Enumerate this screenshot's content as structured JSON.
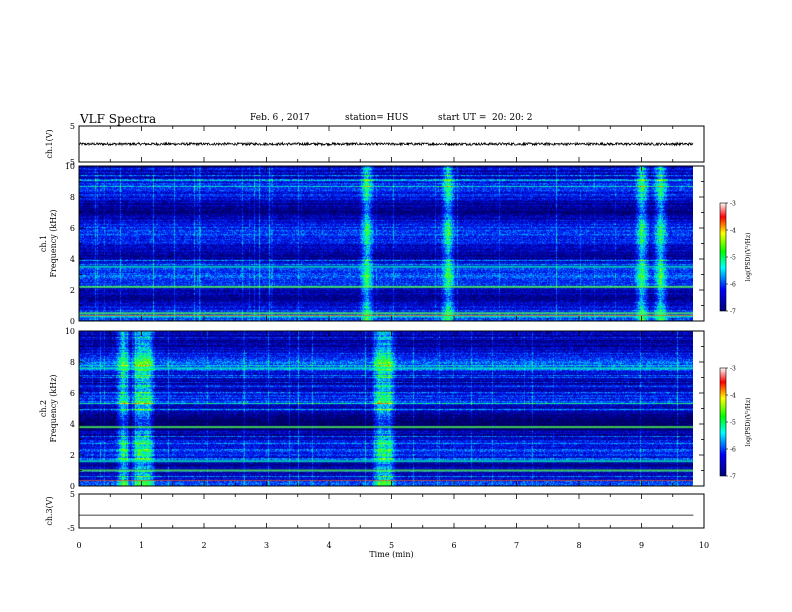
{
  "header": {
    "title": "VLF Spectra",
    "date": "Feb. 6 , 2017",
    "station": "station= HUS",
    "start_label": "start  UT =",
    "start_time": "20: 20: 2"
  },
  "chart_data": {
    "type": "heatmap",
    "xlabel": "Time (min)",
    "xlim": [
      0,
      10
    ],
    "x_ticks": [
      "0",
      "1",
      "2",
      "3",
      "4",
      "5",
      "6",
      "7",
      "8",
      "9",
      "10"
    ],
    "data_end_min": 9.83,
    "panels": [
      {
        "kind": "waveform",
        "ylabel": "ch.1(V)",
        "ylim": [
          -5,
          5
        ],
        "y_ticks": [
          "5",
          "-5"
        ],
        "level": 0.0,
        "noise": 0.35
      },
      {
        "kind": "spectrogram",
        "ylabel": "ch.1\nFrequency (kHz)",
        "ylim": [
          0,
          10
        ],
        "y_ticks": [
          "0",
          "2",
          "4",
          "6",
          "8",
          "10"
        ],
        "bursts_min": [
          4.6,
          5.9,
          9.0,
          9.3
        ],
        "strong_lines_khz": [
          2.2,
          3.5,
          0.5,
          0.3
        ],
        "colorbar": {
          "label": "log(PSD)(V²/Hz)",
          "range": [
            -7,
            -3
          ],
          "ticks": [
            "-3",
            "-4",
            "-5",
            "-6",
            "-7"
          ]
        }
      },
      {
        "kind": "spectrogram",
        "ylabel": "ch.2\nFrequency (kHz)",
        "ylim": [
          0,
          10
        ],
        "y_ticks": [
          "0",
          "2",
          "4",
          "6",
          "8",
          "10"
        ],
        "bursts_min": [
          0.7,
          0.95,
          1.1,
          4.8,
          4.95
        ],
        "strong_lines_khz": [
          1.0,
          1.6,
          3.8,
          7.6
        ],
        "colorbar": {
          "label": "log(PSD)(V²/Hz)",
          "range": [
            -7,
            -3
          ],
          "ticks": [
            "-3",
            "-4",
            "-5",
            "-6",
            "-7"
          ]
        }
      },
      {
        "kind": "waveform",
        "ylabel": "ch.3(V)",
        "ylim": [
          -5,
          5
        ],
        "y_ticks": [
          "5",
          "-5"
        ],
        "level": -1.2,
        "noise": 0.0
      }
    ]
  }
}
